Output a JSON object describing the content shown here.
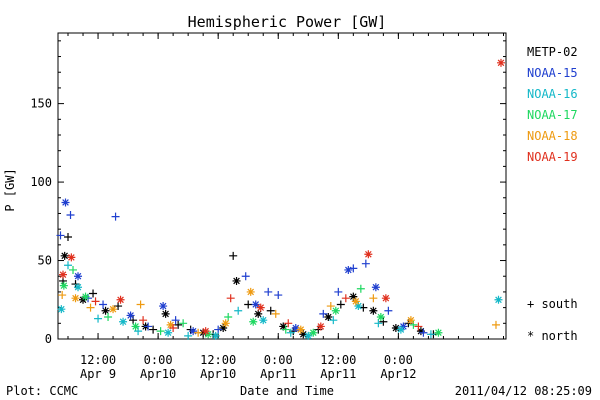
{
  "chart_data": {
    "type": "scatter",
    "title": "Hemispheric Power [GW]",
    "xlabel": "Date and Time",
    "ylabel": "P [GW]",
    "ylim": [
      0,
      195
    ],
    "xlim": [
      "2011-04-09 04:00",
      "2011-04-12 21:30"
    ],
    "yticks": [
      0,
      50,
      100,
      150
    ],
    "xticks": [
      {
        "time": "2011-04-09 12:00",
        "label1": "12:00",
        "label2": "Apr 9"
      },
      {
        "time": "2011-04-10 00:00",
        "label1": "0:00",
        "label2": "Apr10"
      },
      {
        "time": "2011-04-10 12:00",
        "label1": "12:00",
        "label2": "Apr10"
      },
      {
        "time": "2011-04-11 00:00",
        "label1": "0:00",
        "label2": "Apr11"
      },
      {
        "time": "2011-04-11 12:00",
        "label1": "12:00",
        "label2": "Apr11"
      },
      {
        "time": "2011-04-12 00:00",
        "label1": "0:00",
        "label2": "Apr12"
      }
    ],
    "footer_left": "Plot: CCMC",
    "footer_right": "2011/04/12 08:25:09",
    "marker_legend": [
      {
        "symbol": "+",
        "label": "south"
      },
      {
        "symbol": "*",
        "label": "north"
      }
    ],
    "legend_position": "right",
    "series": [
      {
        "name": "METP-02",
        "color": "#000000",
        "points": [
          {
            "t": "2011-04-09 05:00",
            "v": 37,
            "m": "+"
          },
          {
            "t": "2011-04-09 05:20",
            "v": 53,
            "m": "*"
          },
          {
            "t": "2011-04-09 06:00",
            "v": 65,
            "m": "+"
          },
          {
            "t": "2011-04-09 07:30",
            "v": 35,
            "m": "+"
          },
          {
            "t": "2011-04-09 09:00",
            "v": 25,
            "m": "*"
          },
          {
            "t": "2011-04-09 11:00",
            "v": 29,
            "m": "+"
          },
          {
            "t": "2011-04-09 13:30",
            "v": 18,
            "m": "*"
          },
          {
            "t": "2011-04-09 16:00",
            "v": 21,
            "m": "+"
          },
          {
            "t": "2011-04-09 19:00",
            "v": 12,
            "m": "+"
          },
          {
            "t": "2011-04-09 21:30",
            "v": 8,
            "m": "*"
          },
          {
            "t": "2011-04-09 23:00",
            "v": 6,
            "m": "+"
          },
          {
            "t": "2011-04-10 01:30",
            "v": 16,
            "m": "*"
          },
          {
            "t": "2011-04-10 04:00",
            "v": 9,
            "m": "+"
          },
          {
            "t": "2011-04-10 06:30",
            "v": 6,
            "m": "+"
          },
          {
            "t": "2011-04-10 09:00",
            "v": 4,
            "m": "*"
          },
          {
            "t": "2011-04-10 11:00",
            "v": 3,
            "m": "+"
          },
          {
            "t": "2011-04-10 13:00",
            "v": 7,
            "m": "*"
          },
          {
            "t": "2011-04-10 15:00",
            "v": 53,
            "m": "+"
          },
          {
            "t": "2011-04-10 15:40",
            "v": 37,
            "m": "*"
          },
          {
            "t": "2011-04-10 18:00",
            "v": 22,
            "m": "+"
          },
          {
            "t": "2011-04-10 20:00",
            "v": 16,
            "m": "*"
          },
          {
            "t": "2011-04-10 22:30",
            "v": 18,
            "m": "+"
          },
          {
            "t": "2011-04-11 01:00",
            "v": 8,
            "m": "*"
          },
          {
            "t": "2011-04-11 03:00",
            "v": 5,
            "m": "+"
          },
          {
            "t": "2011-04-11 05:00",
            "v": 3,
            "m": "*"
          },
          {
            "t": "2011-04-11 08:00",
            "v": 6,
            "m": "+"
          },
          {
            "t": "2011-04-11 10:00",
            "v": 14,
            "m": "*"
          },
          {
            "t": "2011-04-11 12:30",
            "v": 22,
            "m": "+"
          },
          {
            "t": "2011-04-11 15:00",
            "v": 27,
            "m": "*"
          },
          {
            "t": "2011-04-11 17:00",
            "v": 20,
            "m": "+"
          },
          {
            "t": "2011-04-11 19:00",
            "v": 18,
            "m": "*"
          },
          {
            "t": "2011-04-11 21:00",
            "v": 11,
            "m": "+"
          },
          {
            "t": "2011-04-11 23:30",
            "v": 7,
            "m": "*"
          },
          {
            "t": "2011-04-12 02:00",
            "v": 10,
            "m": "+"
          },
          {
            "t": "2011-04-12 04:30",
            "v": 5,
            "m": "*"
          },
          {
            "t": "2011-04-12 07:00",
            "v": 3,
            "m": "+"
          }
        ]
      },
      {
        "name": "NOAA-15",
        "color": "#1f3fcf",
        "points": [
          {
            "t": "2011-04-09 04:30",
            "v": 66,
            "m": "+"
          },
          {
            "t": "2011-04-09 05:30",
            "v": 87,
            "m": "*"
          },
          {
            "t": "2011-04-09 06:30",
            "v": 79,
            "m": "+"
          },
          {
            "t": "2011-04-09 08:00",
            "v": 40,
            "m": "*"
          },
          {
            "t": "2011-04-09 10:00",
            "v": 26,
            "m": "+"
          },
          {
            "t": "2011-04-09 13:00",
            "v": 22,
            "m": "+"
          },
          {
            "t": "2011-04-09 15:30",
            "v": 78,
            "m": "+"
          },
          {
            "t": "2011-04-09 18:30",
            "v": 15,
            "m": "*"
          },
          {
            "t": "2011-04-09 22:00",
            "v": 8,
            "m": "+"
          },
          {
            "t": "2011-04-10 01:00",
            "v": 21,
            "m": "*"
          },
          {
            "t": "2011-04-10 03:30",
            "v": 12,
            "m": "+"
          },
          {
            "t": "2011-04-10 07:00",
            "v": 5,
            "m": "*"
          },
          {
            "t": "2011-04-10 12:00",
            "v": 6,
            "m": "+"
          },
          {
            "t": "2011-04-10 17:30",
            "v": 40,
            "m": "+"
          },
          {
            "t": "2011-04-10 19:30",
            "v": 22,
            "m": "*"
          },
          {
            "t": "2011-04-10 22:00",
            "v": 30,
            "m": "+"
          },
          {
            "t": "2011-04-11 00:00",
            "v": 28,
            "m": "+"
          },
          {
            "t": "2011-04-11 03:30",
            "v": 7,
            "m": "*"
          },
          {
            "t": "2011-04-11 09:00",
            "v": 16,
            "m": "+"
          },
          {
            "t": "2011-04-11 12:00",
            "v": 30,
            "m": "+"
          },
          {
            "t": "2011-04-11 14:00",
            "v": 44,
            "m": "*"
          },
          {
            "t": "2011-04-11 15:00",
            "v": 45,
            "m": "+"
          },
          {
            "t": "2011-04-11 17:30",
            "v": 48,
            "m": "+"
          },
          {
            "t": "2011-04-11 19:30",
            "v": 33,
            "m": "*"
          },
          {
            "t": "2011-04-11 22:00",
            "v": 18,
            "m": "+"
          },
          {
            "t": "2011-04-12 01:00",
            "v": 8,
            "m": "*"
          },
          {
            "t": "2011-04-12 05:00",
            "v": 4,
            "m": "+"
          }
        ]
      },
      {
        "name": "NOAA-16",
        "color": "#14b8c8",
        "points": [
          {
            "t": "2011-04-09 04:40",
            "v": 19,
            "m": "*"
          },
          {
            "t": "2011-04-09 06:00",
            "v": 47,
            "m": "+"
          },
          {
            "t": "2011-04-09 08:00",
            "v": 33,
            "m": "*"
          },
          {
            "t": "2011-04-09 12:00",
            "v": 13,
            "m": "+"
          },
          {
            "t": "2011-04-09 17:00",
            "v": 11,
            "m": "*"
          },
          {
            "t": "2011-04-09 20:00",
            "v": 5,
            "m": "+"
          },
          {
            "t": "2011-04-10 02:00",
            "v": 4,
            "m": "*"
          },
          {
            "t": "2011-04-10 06:00",
            "v": 2,
            "m": "+"
          },
          {
            "t": "2011-04-10 11:30",
            "v": 2,
            "m": "*"
          },
          {
            "t": "2011-04-10 16:00",
            "v": 18,
            "m": "+"
          },
          {
            "t": "2011-04-10 21:00",
            "v": 12,
            "m": "*"
          },
          {
            "t": "2011-04-11 02:30",
            "v": 4,
            "m": "+"
          },
          {
            "t": "2011-04-11 06:00",
            "v": 2,
            "m": "*"
          },
          {
            "t": "2011-04-11 11:00",
            "v": 12,
            "m": "+"
          },
          {
            "t": "2011-04-11 16:00",
            "v": 21,
            "m": "*"
          },
          {
            "t": "2011-04-11 20:00",
            "v": 10,
            "m": "+"
          },
          {
            "t": "2011-04-12 00:30",
            "v": 6,
            "m": "*"
          },
          {
            "t": "2011-04-12 06:30",
            "v": 3,
            "m": "+"
          },
          {
            "t": "2011-04-12 20:00",
            "v": 25,
            "m": "*"
          }
        ]
      },
      {
        "name": "NOAA-17",
        "color": "#1ed860",
        "points": [
          {
            "t": "2011-04-09 05:10",
            "v": 34,
            "m": "*"
          },
          {
            "t": "2011-04-09 07:00",
            "v": 44,
            "m": "+"
          },
          {
            "t": "2011-04-09 09:30",
            "v": 27,
            "m": "*"
          },
          {
            "t": "2011-04-09 14:00",
            "v": 14,
            "m": "+"
          },
          {
            "t": "2011-04-09 19:30",
            "v": 8,
            "m": "*"
          },
          {
            "t": "2011-04-10 00:30",
            "v": 5,
            "m": "+"
          },
          {
            "t": "2011-04-10 05:00",
            "v": 10,
            "m": "+"
          },
          {
            "t": "2011-04-10 10:00",
            "v": 3,
            "m": "*"
          },
          {
            "t": "2011-04-10 14:00",
            "v": 14,
            "m": "+"
          },
          {
            "t": "2011-04-10 19:00",
            "v": 11,
            "m": "*"
          },
          {
            "t": "2011-04-11 01:30",
            "v": 6,
            "m": "+"
          },
          {
            "t": "2011-04-11 07:00",
            "v": 4,
            "m": "*"
          },
          {
            "t": "2011-04-11 11:30",
            "v": 18,
            "m": "*"
          },
          {
            "t": "2011-04-11 16:30",
            "v": 32,
            "m": "+"
          },
          {
            "t": "2011-04-11 20:30",
            "v": 14,
            "m": "*"
          },
          {
            "t": "2011-04-12 03:00",
            "v": 9,
            "m": "+"
          },
          {
            "t": "2011-04-12 08:00",
            "v": 4,
            "m": "*"
          }
        ]
      },
      {
        "name": "NOAA-18",
        "color": "#ee9a10",
        "points": [
          {
            "t": "2011-04-09 04:50",
            "v": 28,
            "m": "+"
          },
          {
            "t": "2011-04-09 07:30",
            "v": 26,
            "m": "*"
          },
          {
            "t": "2011-04-09 10:30",
            "v": 20,
            "m": "+"
          },
          {
            "t": "2011-04-09 15:00",
            "v": 19,
            "m": "*"
          },
          {
            "t": "2011-04-09 20:30",
            "v": 22,
            "m": "+"
          },
          {
            "t": "2011-04-10 02:30",
            "v": 9,
            "m": "*"
          },
          {
            "t": "2011-04-10 08:00",
            "v": 4,
            "m": "+"
          },
          {
            "t": "2011-04-10 13:30",
            "v": 10,
            "m": "*"
          },
          {
            "t": "2011-04-10 18:30",
            "v": 30,
            "m": "*"
          },
          {
            "t": "2011-04-10 23:30",
            "v": 16,
            "m": "+"
          },
          {
            "t": "2011-04-11 04:30",
            "v": 6,
            "m": "*"
          },
          {
            "t": "2011-04-11 10:30",
            "v": 21,
            "m": "+"
          },
          {
            "t": "2011-04-11 15:30",
            "v": 24,
            "m": "*"
          },
          {
            "t": "2011-04-11 19:00",
            "v": 26,
            "m": "+"
          },
          {
            "t": "2011-04-12 02:30",
            "v": 12,
            "m": "*"
          },
          {
            "t": "2011-04-12 19:30",
            "v": 9,
            "m": "+"
          }
        ]
      },
      {
        "name": "NOAA-19",
        "color": "#e0301e",
        "points": [
          {
            "t": "2011-04-09 05:00",
            "v": 41,
            "m": "*"
          },
          {
            "t": "2011-04-09 06:40",
            "v": 52,
            "m": "*"
          },
          {
            "t": "2011-04-09 11:30",
            "v": 24,
            "m": "+"
          },
          {
            "t": "2011-04-09 16:30",
            "v": 25,
            "m": "*"
          },
          {
            "t": "2011-04-09 21:00",
            "v": 12,
            "m": "+"
          },
          {
            "t": "2011-04-10 03:00",
            "v": 7,
            "m": "+"
          },
          {
            "t": "2011-04-10 09:30",
            "v": 5,
            "m": "*"
          },
          {
            "t": "2011-04-10 14:30",
            "v": 26,
            "m": "+"
          },
          {
            "t": "2011-04-10 20:30",
            "v": 20,
            "m": "*"
          },
          {
            "t": "2011-04-11 02:00",
            "v": 10,
            "m": "+"
          },
          {
            "t": "2011-04-11 08:30",
            "v": 8,
            "m": "*"
          },
          {
            "t": "2011-04-11 13:30",
            "v": 26,
            "m": "+"
          },
          {
            "t": "2011-04-11 18:00",
            "v": 54,
            "m": "*"
          },
          {
            "t": "2011-04-11 21:30",
            "v": 26,
            "m": "*"
          },
          {
            "t": "2011-04-12 04:00",
            "v": 8,
            "m": "+"
          },
          {
            "t": "2011-04-12 20:30",
            "v": 176,
            "m": "*"
          }
        ]
      }
    ]
  }
}
